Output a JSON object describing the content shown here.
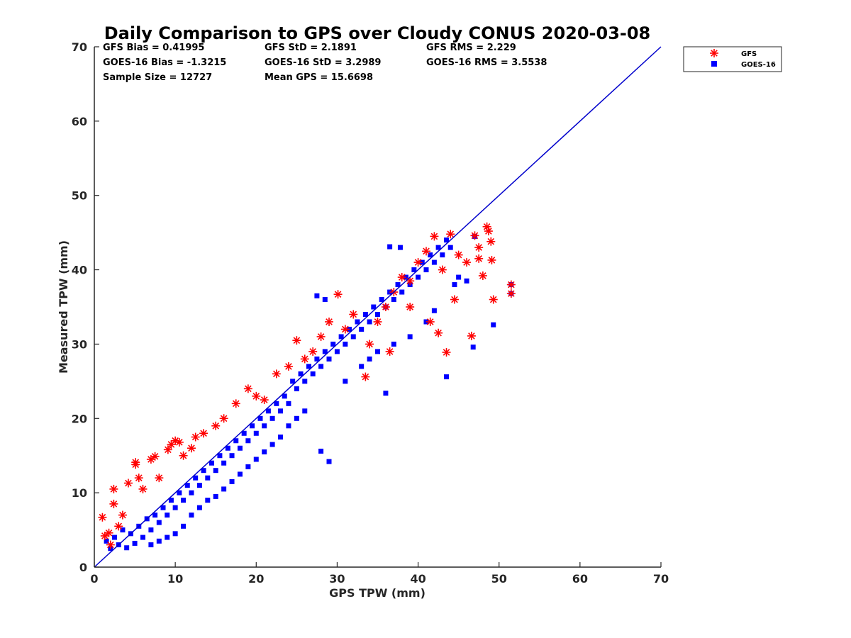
{
  "chart_data": {
    "type": "scatter",
    "title": "Daily Comparison to GPS over Cloudy CONUS 2020-03-08",
    "xlabel": "GPS TPW (mm)",
    "ylabel": "Measured TPW (mm)",
    "xlim": [
      0,
      70
    ],
    "ylim": [
      0,
      70
    ],
    "xticks": [
      "0",
      "10",
      "20",
      "30",
      "40",
      "50",
      "60",
      "70"
    ],
    "yticks": [
      "0",
      "10",
      "20",
      "30",
      "40",
      "50",
      "60",
      "70"
    ],
    "grid": false,
    "legend_position": "outside-top-right",
    "stats": {
      "gfs_bias": "GFS Bias = 0.41995",
      "gfs_std": "GFS StD = 2.1891",
      "gfs_rms": "GFS RMS = 2.229",
      "goes_bias": "GOES-16 Bias = -1.3215",
      "goes_std": "GOES-16 StD = 3.2989",
      "goes_rms": "GOES-16 RMS = 3.5538",
      "sample_size": "Sample Size = 12727",
      "mean_gps": "Mean GPS = 15.6698"
    },
    "reference_line": {
      "x": [
        0,
        70
      ],
      "y": [
        0,
        70
      ],
      "color": "#0000cc"
    },
    "series": [
      {
        "name": "GFS",
        "marker": "asterisk",
        "color": "#ff0000",
        "points": [
          [
            1.0,
            6.7
          ],
          [
            1.3,
            4.2
          ],
          [
            1.8,
            4.6
          ],
          [
            2.4,
            10.5
          ],
          [
            2.4,
            8.5
          ],
          [
            2.0,
            3.0
          ],
          [
            3.0,
            5.5
          ],
          [
            3.5,
            7.0
          ],
          [
            4.2,
            11.3
          ],
          [
            5.1,
            14.1
          ],
          [
            5.1,
            13.8
          ],
          [
            5.5,
            12.0
          ],
          [
            6.0,
            10.5
          ],
          [
            7.0,
            14.5
          ],
          [
            7.5,
            14.9
          ],
          [
            8.0,
            12.0
          ],
          [
            9.1,
            15.8
          ],
          [
            9.5,
            16.5
          ],
          [
            10.0,
            17.0
          ],
          [
            10.5,
            16.8
          ],
          [
            11.0,
            15.0
          ],
          [
            12.0,
            16.0
          ],
          [
            12.5,
            17.5
          ],
          [
            13.5,
            18.0
          ],
          [
            15.0,
            19.0
          ],
          [
            16.0,
            20.0
          ],
          [
            17.5,
            22.0
          ],
          [
            19.0,
            24.0
          ],
          [
            20.0,
            23.0
          ],
          [
            21.0,
            22.5
          ],
          [
            22.5,
            26.0
          ],
          [
            24.0,
            27.0
          ],
          [
            25.0,
            30.5
          ],
          [
            26.0,
            28.0
          ],
          [
            27.0,
            29.0
          ],
          [
            28.0,
            31.0
          ],
          [
            29.0,
            33.0
          ],
          [
            30.1,
            36.7
          ],
          [
            31.0,
            32.0
          ],
          [
            32.0,
            34.0
          ],
          [
            33.5,
            25.6
          ],
          [
            34.0,
            30.0
          ],
          [
            35.0,
            33.0
          ],
          [
            36.0,
            35.0
          ],
          [
            36.5,
            29.0
          ],
          [
            37.0,
            37.0
          ],
          [
            38.0,
            39.0
          ],
          [
            39.0,
            38.5
          ],
          [
            40.0,
            41.0
          ],
          [
            41.0,
            42.5
          ],
          [
            42.0,
            44.5
          ],
          [
            42.5,
            31.5
          ],
          [
            43.0,
            40.0
          ],
          [
            43.5,
            28.9
          ],
          [
            44.0,
            44.8
          ],
          [
            44.5,
            36.0
          ],
          [
            45.0,
            42.0
          ],
          [
            46.0,
            41.0
          ],
          [
            46.6,
            31.1
          ],
          [
            47.0,
            44.6
          ],
          [
            47.5,
            43.0
          ],
          [
            48.0,
            39.2
          ],
          [
            48.5,
            45.8
          ],
          [
            48.7,
            45.2
          ],
          [
            49.0,
            43.8
          ],
          [
            49.1,
            41.3
          ],
          [
            49.3,
            36.0
          ],
          [
            51.5,
            38.0
          ],
          [
            51.5,
            36.8
          ],
          [
            47.5,
            41.5
          ],
          [
            41.5,
            33.0
          ],
          [
            39.0,
            35.0
          ]
        ]
      },
      {
        "name": "GOES-16",
        "marker": "square",
        "color": "#0000ff",
        "points": [
          [
            1.5,
            3.5
          ],
          [
            2.0,
            2.5
          ],
          [
            2.5,
            4.0
          ],
          [
            3.0,
            3.0
          ],
          [
            3.5,
            5.0
          ],
          [
            4.0,
            2.6
          ],
          [
            4.5,
            4.5
          ],
          [
            5.0,
            3.2
          ],
          [
            5.5,
            5.5
          ],
          [
            6.0,
            4.0
          ],
          [
            6.5,
            6.5
          ],
          [
            7.0,
            5.0
          ],
          [
            7.5,
            7.0
          ],
          [
            8.0,
            6.0
          ],
          [
            8.5,
            8.0
          ],
          [
            9.0,
            7.0
          ],
          [
            9.5,
            9.0
          ],
          [
            10.0,
            8.0
          ],
          [
            10.5,
            10.0
          ],
          [
            11.0,
            9.0
          ],
          [
            11.5,
            11.0
          ],
          [
            12.0,
            10.0
          ],
          [
            12.5,
            12.0
          ],
          [
            13.0,
            11.0
          ],
          [
            13.5,
            13.0
          ],
          [
            14.0,
            12.0
          ],
          [
            14.5,
            14.0
          ],
          [
            15.0,
            13.0
          ],
          [
            15.5,
            15.0
          ],
          [
            16.0,
            14.0
          ],
          [
            16.5,
            16.0
          ],
          [
            17.0,
            15.0
          ],
          [
            17.5,
            17.0
          ],
          [
            18.0,
            16.0
          ],
          [
            18.5,
            18.0
          ],
          [
            19.0,
            17.0
          ],
          [
            19.5,
            19.0
          ],
          [
            20.0,
            18.0
          ],
          [
            20.5,
            20.0
          ],
          [
            21.0,
            19.0
          ],
          [
            21.5,
            21.0
          ],
          [
            22.0,
            20.0
          ],
          [
            22.5,
            22.0
          ],
          [
            23.0,
            21.0
          ],
          [
            23.5,
            23.0
          ],
          [
            24.0,
            22.0
          ],
          [
            24.5,
            25.0
          ],
          [
            25.0,
            24.0
          ],
          [
            25.5,
            26.0
          ],
          [
            26.0,
            25.0
          ],
          [
            26.5,
            27.0
          ],
          [
            27.0,
            26.0
          ],
          [
            27.5,
            28.0
          ],
          [
            28.0,
            27.0
          ],
          [
            28.5,
            29.0
          ],
          [
            29.0,
            28.0
          ],
          [
            29.5,
            30.0
          ],
          [
            30.0,
            29.0
          ],
          [
            30.5,
            31.0
          ],
          [
            31.0,
            30.0
          ],
          [
            31.5,
            32.0
          ],
          [
            32.0,
            31.0
          ],
          [
            32.5,
            33.0
          ],
          [
            33.0,
            32.0
          ],
          [
            33.5,
            34.0
          ],
          [
            34.0,
            33.0
          ],
          [
            34.5,
            35.0
          ],
          [
            35.0,
            34.0
          ],
          [
            35.5,
            36.0
          ],
          [
            36.0,
            35.0
          ],
          [
            36.5,
            37.0
          ],
          [
            37.0,
            36.0
          ],
          [
            37.5,
            38.0
          ],
          [
            38.0,
            37.0
          ],
          [
            38.5,
            39.0
          ],
          [
            39.0,
            38.0
          ],
          [
            39.5,
            40.0
          ],
          [
            40.0,
            39.0
          ],
          [
            40.5,
            41.0
          ],
          [
            41.0,
            40.0
          ],
          [
            41.5,
            42.0
          ],
          [
            42.0,
            41.0
          ],
          [
            42.5,
            43.0
          ],
          [
            43.0,
            42.0
          ],
          [
            43.5,
            44.0
          ],
          [
            44.0,
            43.0
          ],
          [
            44.5,
            38.0
          ],
          [
            45.0,
            39.0
          ],
          [
            46.0,
            38.5
          ],
          [
            47.0,
            44.5
          ],
          [
            28.0,
            15.6
          ],
          [
            29.0,
            14.2
          ],
          [
            36.0,
            23.4
          ],
          [
            43.5,
            25.6
          ],
          [
            46.8,
            29.6
          ],
          [
            49.3,
            32.6
          ],
          [
            51.5,
            38.0
          ],
          [
            51.5,
            36.8
          ],
          [
            36.5,
            43.1
          ],
          [
            37.8,
            43.0
          ],
          [
            27.5,
            36.5
          ],
          [
            28.5,
            36.0
          ],
          [
            31.0,
            25.0
          ],
          [
            33.0,
            27.0
          ],
          [
            34.0,
            28.0
          ],
          [
            35.0,
            29.0
          ],
          [
            37.0,
            30.0
          ],
          [
            39.0,
            31.0
          ],
          [
            41.0,
            33.0
          ],
          [
            42.0,
            34.5
          ],
          [
            24.0,
            19.0
          ],
          [
            25.0,
            20.0
          ],
          [
            26.0,
            21.0
          ],
          [
            22.0,
            16.5
          ],
          [
            23.0,
            17.5
          ],
          [
            20.0,
            14.5
          ],
          [
            21.0,
            15.5
          ],
          [
            18.0,
            12.5
          ],
          [
            19.0,
            13.5
          ],
          [
            16.0,
            10.5
          ],
          [
            17.0,
            11.5
          ],
          [
            14.0,
            9.0
          ],
          [
            15.0,
            9.5
          ],
          [
            12.0,
            7.0
          ],
          [
            13.0,
            8.0
          ],
          [
            11.0,
            5.5
          ],
          [
            10.0,
            4.5
          ],
          [
            9.0,
            4.0
          ],
          [
            8.0,
            3.5
          ],
          [
            7.0,
            3.0
          ]
        ]
      }
    ]
  }
}
